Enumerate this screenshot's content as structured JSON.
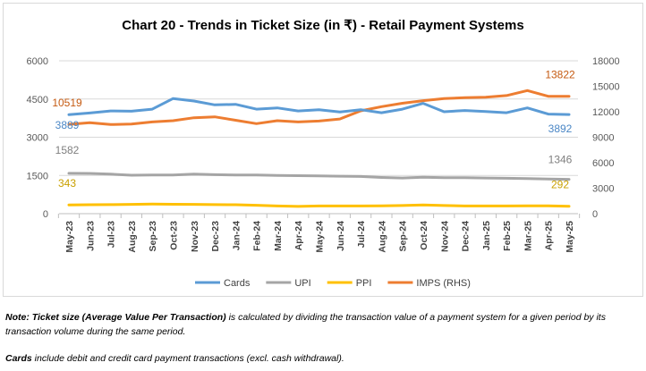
{
  "chart_data": {
    "type": "line",
    "title": "Chart 20 - Trends in Ticket Size (in ₹) - Retail Payment Systems",
    "categories": [
      "May-23",
      "Jun-23",
      "Jul-23",
      "Aug-23",
      "Sep-23",
      "Oct-23",
      "Nov-23",
      "Dec-23",
      "Jan-24",
      "Feb-24",
      "Mar-24",
      "Apr-24",
      "May-24",
      "Jun-24",
      "Jul-24",
      "Aug-24",
      "Sep-24",
      "Oct-24",
      "Nov-24",
      "Dec-24",
      "Jan-25",
      "Feb-25",
      "Mar-25",
      "Apr-25",
      "May-25"
    ],
    "y_left": {
      "ylim": [
        0,
        6000
      ],
      "ticks": [
        "0",
        "1500",
        "3000",
        "4500",
        "6000"
      ]
    },
    "y_right": {
      "ylim": [
        0,
        18000
      ],
      "ticks": [
        "0",
        "3000",
        "6000",
        "9000",
        "12000",
        "15000",
        "18000"
      ]
    },
    "grid": true,
    "legend": "bottom",
    "series": [
      {
        "name": "Cards",
        "axis": "left",
        "color": "#5b9bd5",
        "values": [
          3889,
          3950,
          4030,
          4020,
          4100,
          4520,
          4420,
          4270,
          4290,
          4100,
          4150,
          4030,
          4080,
          3990,
          4080,
          3960,
          4100,
          4330,
          4000,
          4050,
          4010,
          3960,
          4150,
          3910,
          3892
        ],
        "labels": {
          "first": "3889",
          "last": "3892"
        }
      },
      {
        "name": "UPI",
        "axis": "left",
        "color": "#a5a5a5",
        "values": [
          1582,
          1580,
          1550,
          1510,
          1520,
          1520,
          1550,
          1530,
          1520,
          1520,
          1500,
          1490,
          1480,
          1470,
          1460,
          1420,
          1400,
          1430,
          1410,
          1410,
          1400,
          1390,
          1380,
          1360,
          1346
        ],
        "labels": {
          "first": "1582",
          "last": "1346"
        }
      },
      {
        "name": "PPI",
        "axis": "left",
        "color": "#ffc000",
        "values": [
          343,
          350,
          355,
          365,
          375,
          370,
          365,
          355,
          350,
          330,
          300,
          285,
          300,
          300,
          300,
          310,
          320,
          340,
          320,
          300,
          300,
          300,
          310,
          305,
          292
        ],
        "labels": {
          "first": "343",
          "last": "292"
        }
      },
      {
        "name": "IMPS (RHS)",
        "axis": "right",
        "color": "#ed7d31",
        "values": [
          10519,
          10700,
          10500,
          10550,
          10800,
          10950,
          11300,
          11400,
          11000,
          10600,
          10950,
          10800,
          10900,
          11150,
          12100,
          12600,
          13000,
          13300,
          13550,
          13650,
          13700,
          13900,
          14500,
          13822,
          13822
        ],
        "labels": {
          "first": "10519",
          "last": "13822"
        }
      }
    ]
  },
  "notes": {
    "note1_bold": "Note: Ticket size (Average Value Per Transaction)",
    "note1_rest": " is calculated by dividing the transaction value of a payment system for a given period by its transaction volume during the same period.",
    "note2_bold": "Cards",
    "note2_rest": " include debit and credit card payment transactions (excl. cash withdrawal)."
  }
}
